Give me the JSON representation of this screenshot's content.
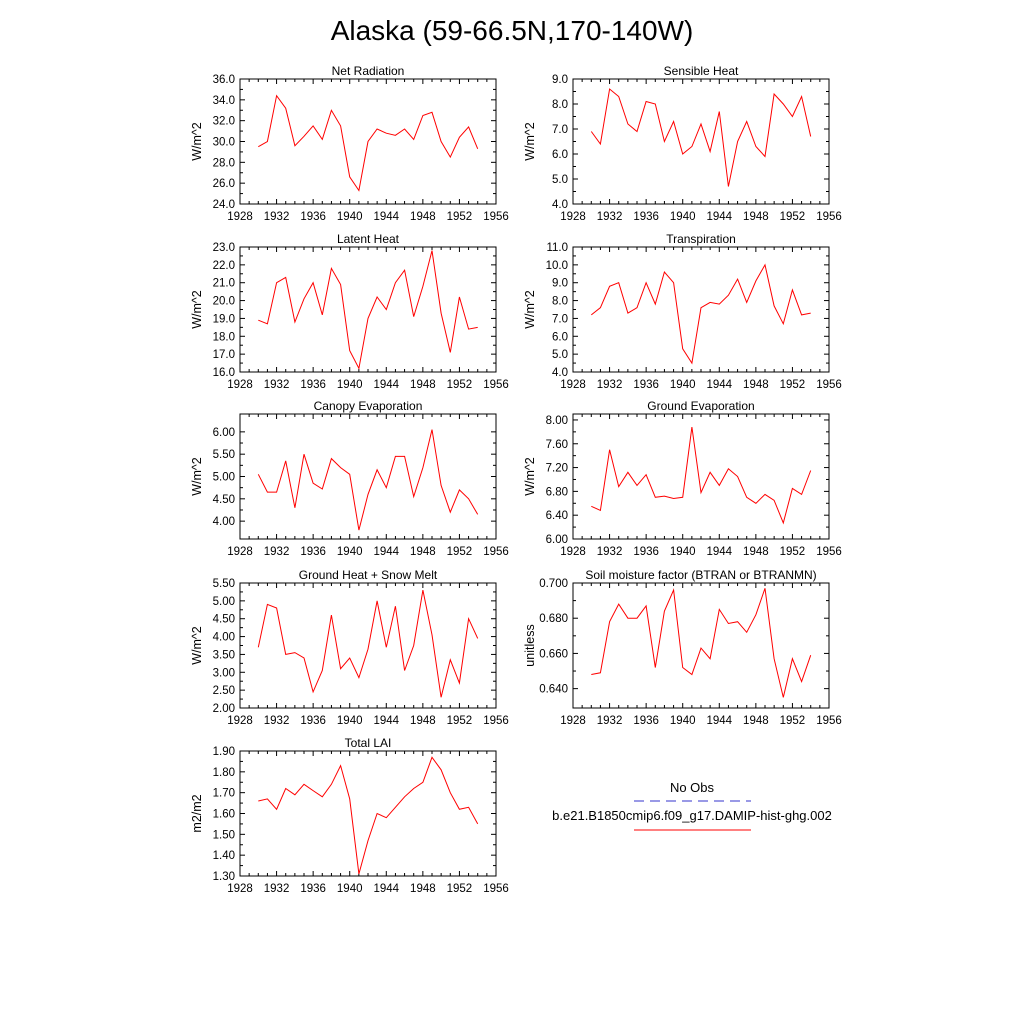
{
  "figure": {
    "title": "Alaska (59-66.5N,170-140W)"
  },
  "legend": {
    "obs_label": "No Obs",
    "obs_color": "#3333cc",
    "model_label": "b.e21.B1850cmip6.f09_g17.DAMIP-hist-ghg.002",
    "model_color": "#ff0000"
  },
  "chart_data": [
    {
      "type": "line",
      "title": "Net Radiation",
      "ylabel": "W/m^2",
      "xlim": [
        1928,
        1956
      ],
      "xticks": [
        "1928",
        "1932",
        "1936",
        "1940",
        "1944",
        "1948",
        "1952",
        "1956"
      ],
      "ylim": [
        24.0,
        36.0
      ],
      "yticks": [
        "24.0",
        "26.0",
        "28.0",
        "30.0",
        "32.0",
        "34.0",
        "36.0"
      ],
      "x": [
        1930,
        1931,
        1932,
        1933,
        1934,
        1935,
        1936,
        1937,
        1938,
        1939,
        1940,
        1941,
        1942,
        1943,
        1944,
        1945,
        1946,
        1947,
        1948,
        1949,
        1950,
        1951,
        1952,
        1953,
        1954
      ],
      "series": [
        {
          "values": [
            29.5,
            30.0,
            34.4,
            33.2,
            29.6,
            30.5,
            31.5,
            30.2,
            33.0,
            31.5,
            26.6,
            25.3,
            30.0,
            31.2,
            30.8,
            30.6,
            31.2,
            30.2,
            32.5,
            32.8,
            30.0,
            28.5,
            30.4,
            31.4,
            29.3
          ]
        }
      ]
    },
    {
      "type": "line",
      "title": "Sensible Heat",
      "ylabel": "W/m^2",
      "xlim": [
        1928,
        1956
      ],
      "xticks": [
        "1928",
        "1932",
        "1936",
        "1940",
        "1944",
        "1948",
        "1952",
        "1956"
      ],
      "ylim": [
        4.0,
        9.0
      ],
      "yticks": [
        "4.0",
        "5.0",
        "6.0",
        "7.0",
        "8.0",
        "9.0"
      ],
      "x": [
        1930,
        1931,
        1932,
        1933,
        1934,
        1935,
        1936,
        1937,
        1938,
        1939,
        1940,
        1941,
        1942,
        1943,
        1944,
        1945,
        1946,
        1947,
        1948,
        1949,
        1950,
        1951,
        1952,
        1953,
        1954
      ],
      "series": [
        {
          "values": [
            6.9,
            6.4,
            8.6,
            8.3,
            7.2,
            6.9,
            8.1,
            8.0,
            6.5,
            7.3,
            6.0,
            6.3,
            7.2,
            6.1,
            7.7,
            4.7,
            6.5,
            7.3,
            6.3,
            5.9,
            8.4,
            8.0,
            7.5,
            8.3,
            6.7
          ]
        }
      ]
    },
    {
      "type": "line",
      "title": "Latent Heat",
      "ylabel": "W/m^2",
      "xlim": [
        1928,
        1956
      ],
      "xticks": [
        "1928",
        "1932",
        "1936",
        "1940",
        "1944",
        "1948",
        "1952",
        "1956"
      ],
      "ylim": [
        16.0,
        23.0
      ],
      "yticks": [
        "16.0",
        "17.0",
        "18.0",
        "19.0",
        "20.0",
        "21.0",
        "22.0",
        "23.0"
      ],
      "x": [
        1930,
        1931,
        1932,
        1933,
        1934,
        1935,
        1936,
        1937,
        1938,
        1939,
        1940,
        1941,
        1942,
        1943,
        1944,
        1945,
        1946,
        1947,
        1948,
        1949,
        1950,
        1951,
        1952,
        1953,
        1954
      ],
      "series": [
        {
          "values": [
            18.9,
            18.7,
            21.0,
            21.3,
            18.8,
            20.1,
            21.0,
            19.2,
            21.8,
            20.9,
            17.2,
            16.2,
            19.0,
            20.2,
            19.5,
            21.0,
            21.7,
            19.1,
            20.8,
            22.8,
            19.3,
            17.1,
            20.2,
            18.4,
            18.5
          ]
        }
      ]
    },
    {
      "type": "line",
      "title": "Transpiration",
      "ylabel": "W/m^2",
      "xlim": [
        1928,
        1956
      ],
      "xticks": [
        "1928",
        "1932",
        "1936",
        "1940",
        "1944",
        "1948",
        "1952",
        "1956"
      ],
      "ylim": [
        4.0,
        11.0
      ],
      "yticks": [
        "4.0",
        "5.0",
        "6.0",
        "7.0",
        "8.0",
        "9.0",
        "10.0",
        "11.0"
      ],
      "x": [
        1930,
        1931,
        1932,
        1933,
        1934,
        1935,
        1936,
        1937,
        1938,
        1939,
        1940,
        1941,
        1942,
        1943,
        1944,
        1945,
        1946,
        1947,
        1948,
        1949,
        1950,
        1951,
        1952,
        1953,
        1954
      ],
      "series": [
        {
          "values": [
            7.2,
            7.6,
            8.8,
            9.0,
            7.3,
            7.6,
            9.0,
            7.8,
            9.6,
            9.0,
            5.3,
            4.5,
            7.6,
            7.9,
            7.8,
            8.3,
            9.2,
            7.9,
            9.1,
            10.0,
            7.7,
            6.7,
            8.6,
            7.2,
            7.3
          ]
        }
      ]
    },
    {
      "type": "line",
      "title": "Canopy Evaporation",
      "ylabel": "W/m^2",
      "xlim": [
        1928,
        1956
      ],
      "xticks": [
        "1928",
        "1932",
        "1936",
        "1940",
        "1944",
        "1948",
        "1952",
        "1956"
      ],
      "ylim": [
        3.6,
        6.4
      ],
      "yticks": [
        "4.00",
        "4.50",
        "5.00",
        "5.50",
        "6.00"
      ],
      "ytick_values": [
        4.0,
        4.5,
        5.0,
        5.5,
        6.0
      ],
      "x": [
        1930,
        1931,
        1932,
        1933,
        1934,
        1935,
        1936,
        1937,
        1938,
        1939,
        1940,
        1941,
        1942,
        1943,
        1944,
        1945,
        1946,
        1947,
        1948,
        1949,
        1950,
        1951,
        1952,
        1953,
        1954
      ],
      "series": [
        {
          "values": [
            5.05,
            4.65,
            4.65,
            5.35,
            4.3,
            5.5,
            4.85,
            4.72,
            5.4,
            5.2,
            5.05,
            3.8,
            4.6,
            5.15,
            4.75,
            5.45,
            5.45,
            4.55,
            5.2,
            6.05,
            4.8,
            4.2,
            4.7,
            4.5,
            4.15
          ]
        }
      ]
    },
    {
      "type": "line",
      "title": "Ground Evaporation",
      "ylabel": "W/m^2",
      "xlim": [
        1928,
        1956
      ],
      "xticks": [
        "1928",
        "1932",
        "1936",
        "1940",
        "1944",
        "1948",
        "1952",
        "1956"
      ],
      "ylim": [
        6.0,
        8.1
      ],
      "yticks": [
        "6.00",
        "6.40",
        "6.80",
        "7.20",
        "7.60",
        "8.00"
      ],
      "ytick_values": [
        6.0,
        6.4,
        6.8,
        7.2,
        7.6,
        8.0
      ],
      "x": [
        1930,
        1931,
        1932,
        1933,
        1934,
        1935,
        1936,
        1937,
        1938,
        1939,
        1940,
        1941,
        1942,
        1943,
        1944,
        1945,
        1946,
        1947,
        1948,
        1949,
        1950,
        1951,
        1952,
        1953,
        1954
      ],
      "series": [
        {
          "values": [
            6.55,
            6.48,
            7.5,
            6.88,
            7.12,
            6.9,
            7.08,
            6.7,
            6.72,
            6.68,
            6.7,
            7.88,
            6.78,
            7.12,
            6.9,
            7.18,
            7.05,
            6.7,
            6.6,
            6.75,
            6.65,
            6.27,
            6.85,
            6.75,
            7.15
          ]
        }
      ]
    },
    {
      "type": "line",
      "title": "Ground Heat + Snow Melt",
      "ylabel": "W/m^2",
      "xlim": [
        1928,
        1956
      ],
      "xticks": [
        "1928",
        "1932",
        "1936",
        "1940",
        "1944",
        "1948",
        "1952",
        "1956"
      ],
      "ylim": [
        2.0,
        5.5
      ],
      "yticks": [
        "2.00",
        "2.50",
        "3.00",
        "3.50",
        "4.00",
        "4.50",
        "5.00",
        "5.50"
      ],
      "ytick_values": [
        2.0,
        2.5,
        3.0,
        3.5,
        4.0,
        4.5,
        5.0,
        5.5
      ],
      "x": [
        1930,
        1931,
        1932,
        1933,
        1934,
        1935,
        1936,
        1937,
        1938,
        1939,
        1940,
        1941,
        1942,
        1943,
        1944,
        1945,
        1946,
        1947,
        1948,
        1949,
        1950,
        1951,
        1952,
        1953,
        1954
      ],
      "series": [
        {
          "values": [
            3.7,
            4.9,
            4.8,
            3.5,
            3.55,
            3.4,
            2.45,
            3.05,
            4.6,
            3.1,
            3.4,
            2.85,
            3.65,
            5.0,
            3.7,
            4.85,
            3.05,
            3.75,
            5.3,
            4.05,
            2.3,
            3.35,
            2.7,
            4.5,
            3.95
          ]
        }
      ]
    },
    {
      "type": "line",
      "title": "Soil moisture factor (BTRAN or BTRANMN)",
      "ylabel": "unitless",
      "xlim": [
        1928,
        1956
      ],
      "xticks": [
        "1928",
        "1932",
        "1936",
        "1940",
        "1944",
        "1948",
        "1952",
        "1956"
      ],
      "ylim": [
        0.629,
        0.7
      ],
      "yticks": [
        "0.640",
        "0.660",
        "0.680",
        "0.700"
      ],
      "ytick_values": [
        0.64,
        0.66,
        0.68,
        0.7
      ],
      "x": [
        1930,
        1931,
        1932,
        1933,
        1934,
        1935,
        1936,
        1937,
        1938,
        1939,
        1940,
        1941,
        1942,
        1943,
        1944,
        1945,
        1946,
        1947,
        1948,
        1949,
        1950,
        1951,
        1952,
        1953,
        1954
      ],
      "series": [
        {
          "values": [
            0.648,
            0.649,
            0.678,
            0.688,
            0.68,
            0.68,
            0.687,
            0.652,
            0.684,
            0.696,
            0.652,
            0.648,
            0.663,
            0.657,
            0.685,
            0.677,
            0.678,
            0.672,
            0.682,
            0.697,
            0.657,
            0.635,
            0.657,
            0.644,
            0.659
          ]
        }
      ]
    },
    {
      "type": "line",
      "title": "Total LAI",
      "ylabel": "m2/m2",
      "xlim": [
        1928,
        1956
      ],
      "xticks": [
        "1928",
        "1932",
        "1936",
        "1940",
        "1944",
        "1948",
        "1952",
        "1956"
      ],
      "ylim": [
        1.3,
        1.9
      ],
      "yticks": [
        "1.30",
        "1.40",
        "1.50",
        "1.60",
        "1.70",
        "1.80",
        "1.90"
      ],
      "ytick_values": [
        1.3,
        1.4,
        1.5,
        1.6,
        1.7,
        1.8,
        1.9
      ],
      "x": [
        1930,
        1931,
        1932,
        1933,
        1934,
        1935,
        1936,
        1937,
        1938,
        1939,
        1940,
        1941,
        1942,
        1943,
        1944,
        1945,
        1946,
        1947,
        1948,
        1949,
        1950,
        1951,
        1952,
        1953,
        1954
      ],
      "series": [
        {
          "values": [
            1.66,
            1.67,
            1.62,
            1.72,
            1.69,
            1.74,
            1.71,
            1.68,
            1.74,
            1.83,
            1.67,
            1.31,
            1.47,
            1.6,
            1.58,
            1.63,
            1.68,
            1.72,
            1.75,
            1.87,
            1.81,
            1.7,
            1.62,
            1.63,
            1.55
          ]
        }
      ]
    }
  ]
}
